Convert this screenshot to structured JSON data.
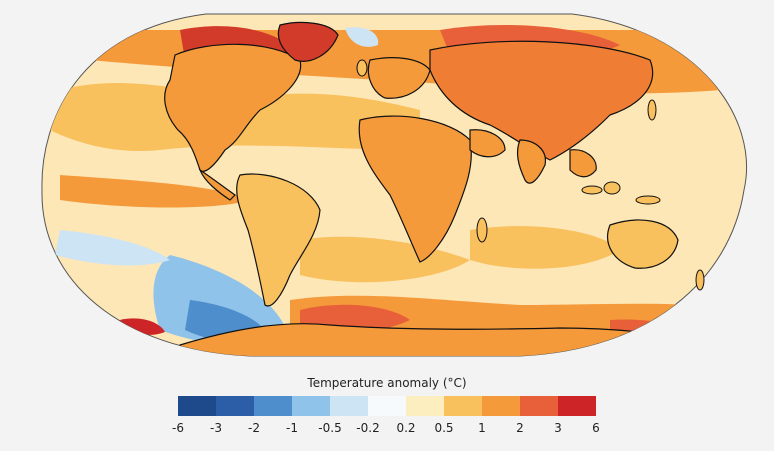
{
  "legend": {
    "title": "Temperature anomaly (°C)",
    "colors": [
      "#1e4a8c",
      "#2c5ea8",
      "#4f8ecc",
      "#8fc3ea",
      "#cce4f4",
      "#f7fafc",
      "#fdeec0",
      "#f9c05e",
      "#f59a3a",
      "#e8603a",
      "#cd2527"
    ],
    "ticks": [
      "-6",
      "-3",
      "-2",
      "-1",
      "-0.5",
      "-0.2",
      "0.2",
      "0.5",
      "1",
      "2",
      "3",
      "6"
    ]
  },
  "map": {
    "ocean_color": "#fde7b6",
    "coastline_color": "#111111",
    "regions": [
      {
        "name": "Arctic Canada / Greenland",
        "level": "very warm",
        "color": "#d23a2a"
      },
      {
        "name": "Northern Eurasia",
        "level": "warm",
        "color": "#ef7d33"
      },
      {
        "name": "Southern Ocean west of Antarctic Peninsula",
        "level": "cool",
        "color": "#6ea6dc"
      },
      {
        "name": "Antarctica (Ross sector)",
        "level": "very warm",
        "color": "#d9432c"
      },
      {
        "name": "Tropical Pacific",
        "level": "near normal",
        "color": "#fdf4dc"
      }
    ]
  }
}
